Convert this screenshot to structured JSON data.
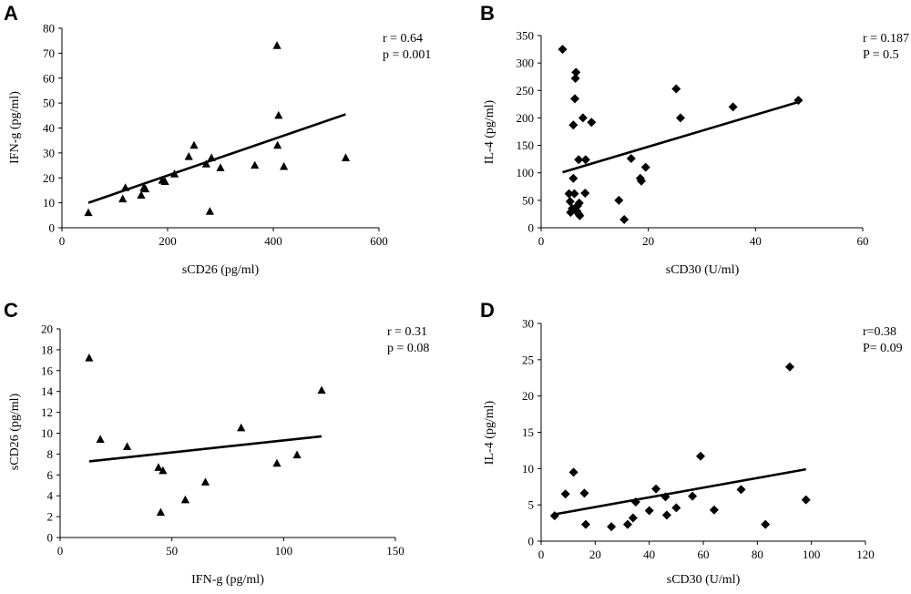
{
  "chart_data": [
    {
      "panel": "A",
      "type": "scatter",
      "marker": "triangle",
      "xlabel": "sCD26 (pg/ml)",
      "ylabel": "IFN-g (pg/ml)",
      "xlim": [
        0,
        600
      ],
      "ylim": [
        0,
        80
      ],
      "xticks": [
        0,
        200,
        400,
        600
      ],
      "yticks": [
        0,
        10,
        20,
        30,
        40,
        50,
        60,
        70,
        80
      ],
      "stats": [
        "r = 0.64",
        "p = 0.001"
      ],
      "points": [
        [
          50,
          6
        ],
        [
          115,
          11.5
        ],
        [
          120,
          16
        ],
        [
          150,
          13
        ],
        [
          155,
          16
        ],
        [
          158,
          15.5
        ],
        [
          190,
          19
        ],
        [
          195,
          18.5
        ],
        [
          213,
          21.5
        ],
        [
          240,
          28.5
        ],
        [
          250,
          33
        ],
        [
          273,
          25.5
        ],
        [
          280,
          6.5
        ],
        [
          283,
          28
        ],
        [
          300,
          24
        ],
        [
          365,
          25
        ],
        [
          407,
          73
        ],
        [
          408,
          33
        ],
        [
          410,
          45
        ],
        [
          420,
          24.5
        ],
        [
          537,
          28
        ]
      ],
      "trendline": [
        [
          50,
          10
        ],
        [
          537,
          45.5
        ]
      ]
    },
    {
      "panel": "B",
      "type": "scatter",
      "marker": "diamond",
      "xlabel": "sCD30 (U/ml)",
      "ylabel": "IL-4 (pg/ml)",
      "xlim": [
        0,
        60
      ],
      "ylim": [
        0,
        350
      ],
      "xticks": [
        0,
        20,
        40,
        60
      ],
      "yticks": [
        0,
        50,
        100,
        150,
        200,
        250,
        300,
        350
      ],
      "stats": [
        "r = 0.187",
        "P = 0.5"
      ],
      "points": [
        [
          4,
          325
        ],
        [
          5.2,
          62
        ],
        [
          5.4,
          48
        ],
        [
          5.5,
          28
        ],
        [
          5.8,
          35
        ],
        [
          6,
          90
        ],
        [
          6,
          187
        ],
        [
          6.2,
          62
        ],
        [
          6.3,
          235
        ],
        [
          6.4,
          272
        ],
        [
          6.5,
          283
        ],
        [
          6.7,
          30
        ],
        [
          6.8,
          40
        ],
        [
          7,
          124
        ],
        [
          7,
          25
        ],
        [
          7.1,
          45
        ],
        [
          7.2,
          22
        ],
        [
          7.8,
          200
        ],
        [
          8.2,
          63
        ],
        [
          8.3,
          124
        ],
        [
          9.4,
          192
        ],
        [
          14.5,
          50
        ],
        [
          15.5,
          15
        ],
        [
          16.8,
          126
        ],
        [
          18.5,
          90
        ],
        [
          18.7,
          85
        ],
        [
          19.5,
          110
        ],
        [
          25.2,
          253
        ],
        [
          26,
          200
        ],
        [
          35.8,
          220
        ],
        [
          48,
          232
        ]
      ],
      "trendline": [
        [
          4,
          101
        ],
        [
          48,
          229
        ]
      ]
    },
    {
      "panel": "C",
      "type": "scatter",
      "marker": "triangle",
      "xlabel": "IFN-g (pg/ml)",
      "ylabel": "sCD26 (pg/ml)",
      "xlim": [
        0,
        150
      ],
      "ylim": [
        0,
        20
      ],
      "xticks": [
        0,
        50,
        100,
        150
      ],
      "yticks": [
        0,
        2,
        4,
        6,
        8,
        10,
        12,
        14,
        16,
        18,
        20
      ],
      "stats": [
        "r = 0.31",
        "p = 0.08"
      ],
      "points": [
        [
          13,
          17.2
        ],
        [
          18,
          9.4
        ],
        [
          30,
          8.7
        ],
        [
          44,
          6.7
        ],
        [
          45,
          2.4
        ],
        [
          46,
          6.4
        ],
        [
          56,
          3.6
        ],
        [
          65,
          5.3
        ],
        [
          81,
          10.5
        ],
        [
          97,
          7.1
        ],
        [
          106,
          7.9
        ],
        [
          117,
          14.1
        ]
      ],
      "trendline": [
        [
          13,
          7.3
        ],
        [
          117,
          9.7
        ]
      ]
    },
    {
      "panel": "D",
      "type": "scatter",
      "marker": "diamond",
      "xlabel": "sCD30 (U/ml)",
      "ylabel": "IL-4 (pg/ml)",
      "xlim": [
        0,
        120
      ],
      "ylim": [
        0,
        30
      ],
      "xticks": [
        0,
        20,
        40,
        60,
        80,
        100,
        120
      ],
      "yticks": [
        0,
        5,
        10,
        15,
        20,
        25,
        30
      ],
      "stats": [
        "r=0.38",
        "P= 0.09"
      ],
      "points": [
        [
          5,
          3.5
        ],
        [
          9,
          6.5
        ],
        [
          12,
          9.5
        ],
        [
          16,
          6.6
        ],
        [
          16.5,
          2.3
        ],
        [
          26,
          2
        ],
        [
          32,
          2.3
        ],
        [
          34,
          3.2
        ],
        [
          35,
          5.4
        ],
        [
          40,
          4.2
        ],
        [
          42.5,
          7.2
        ],
        [
          46,
          6.1
        ],
        [
          46.5,
          3.6
        ],
        [
          50,
          4.6
        ],
        [
          56,
          6.2
        ],
        [
          59,
          11.7
        ],
        [
          64,
          4.3
        ],
        [
          74,
          7.1
        ],
        [
          83,
          2.3
        ],
        [
          92,
          24
        ],
        [
          98,
          5.7
        ]
      ],
      "trendline": [
        [
          5,
          3.7
        ],
        [
          98,
          9.9
        ]
      ]
    }
  ]
}
